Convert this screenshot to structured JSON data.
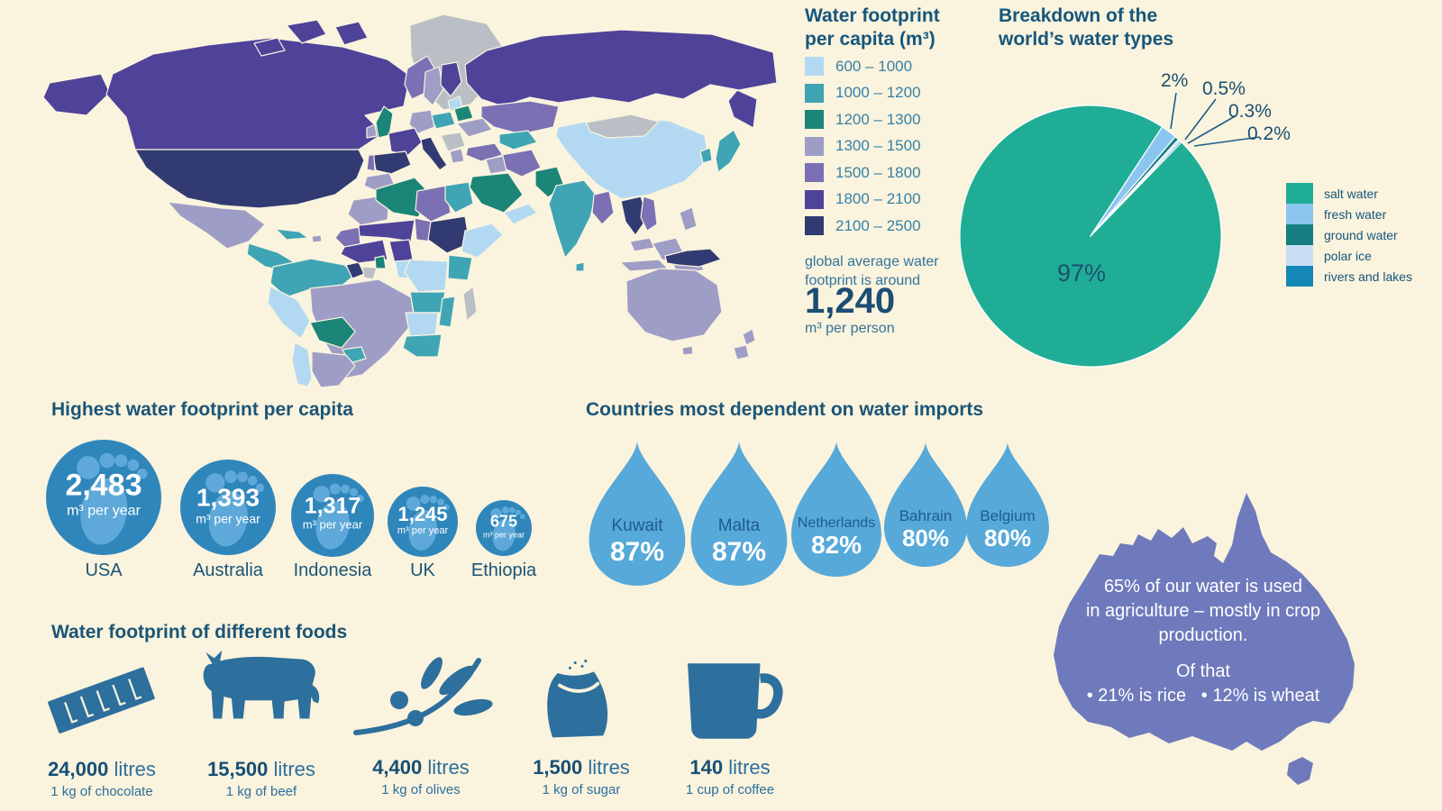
{
  "colors": {
    "background": "#faf3dd",
    "heading": "#15567d",
    "map": {
      "b600": "#b3d9f2",
      "b1000": "#3fa5b4",
      "b1200": "#1b8577",
      "b1300": "#9e9dc6",
      "b1500": "#7a70b3",
      "b1800": "#4e4399",
      "b2100": "#323a72",
      "nodata": "#b9bfc4"
    },
    "pie": {
      "salt": "#20ad96",
      "fresh": "#8cc6ef",
      "ground": "#157e80",
      "polar": "#cbdff4",
      "rivers": "#1588b8"
    },
    "foot_circle": "#2f86bb",
    "foot_icon": "#5ea9d9",
    "drop": "#57a9d9",
    "drop_label": "#1b5e8c",
    "australia": "#6f7abc",
    "food_icon": "#2d6f9d",
    "paper": "#fbf4de"
  },
  "map_legend": {
    "title_line1": "Water footprint",
    "title_line2": "per capita (m³)",
    "items": [
      {
        "label": "600 – 1000"
      },
      {
        "label": "1000 – 1200"
      },
      {
        "label": "1200 – 1300"
      },
      {
        "label": "1300 – 1500"
      },
      {
        "label": "1500 – 1800"
      },
      {
        "label": "1800 – 2100"
      },
      {
        "label": "2100 – 2500"
      }
    ],
    "note_line1": "global average water",
    "note_line2": "footprint is around",
    "average_value": "1,240",
    "average_unit": "m³ per person"
  },
  "pie": {
    "title_line1": "Breakdown of the",
    "title_line2": "world’s water types",
    "big_label": "97%",
    "callouts": [
      "2%",
      "0.5%",
      "0.3%",
      "0.2%"
    ],
    "legend": [
      "salt water",
      "fresh water",
      "ground water",
      "polar ice",
      "rivers and lakes"
    ]
  },
  "footprints": {
    "title": "Highest water footprint per capita",
    "items": [
      {
        "value": "2,483",
        "unit": "m³ per year",
        "country": "USA"
      },
      {
        "value": "1,393",
        "unit": "m³ per year",
        "country": "Australia"
      },
      {
        "value": "1,317",
        "unit": "m³ per year",
        "country": "Indonesia"
      },
      {
        "value": "1,245",
        "unit": "m³ per year",
        "country": "UK"
      },
      {
        "value": "675",
        "unit": "m³ per year",
        "country": "Ethiopia"
      }
    ]
  },
  "imports": {
    "title": "Countries most dependent on water imports",
    "items": [
      {
        "country": "Kuwait",
        "pct": "87%"
      },
      {
        "country": "Malta",
        "pct": "87%"
      },
      {
        "country": "Netherlands",
        "pct": "82%"
      },
      {
        "country": "Bahrain",
        "pct": "80%"
      },
      {
        "country": "Belgium",
        "pct": "80%"
      }
    ]
  },
  "australia": {
    "line1": "65% of our water is used",
    "line2": "in agriculture – mostly in crop",
    "line3": "production.",
    "of_that": "Of that",
    "rice": "• 21% is rice",
    "wheat": "• 12% is wheat"
  },
  "foods": {
    "title": "Water footprint of different foods",
    "items": [
      {
        "value": "24,000",
        "unit": " litres",
        "desc": "1 kg of chocolate",
        "icon": "chocolate-bar-icon"
      },
      {
        "value": "15,500",
        "unit": " litres",
        "desc": "1 kg of beef",
        "icon": "cow-icon"
      },
      {
        "value": "4,400",
        "unit": " litres",
        "desc": "1 kg of olives",
        "icon": "olive-branch-icon"
      },
      {
        "value": "1,500",
        "unit": " litres",
        "desc": "1 kg of sugar",
        "icon": "sugar-sack-icon"
      },
      {
        "value": "140",
        "unit": " litres",
        "desc": "1 cup of coffee",
        "icon": "coffee-mug-icon"
      }
    ]
  },
  "chart_data": [
    {
      "type": "heatmap",
      "subtype": "choropleth-world-map",
      "title": "Water footprint per capita (m³)",
      "buckets": [
        {
          "range": "600 – 1000",
          "color": "#b3d9f2"
        },
        {
          "range": "1000 – 1200",
          "color": "#3fa5b4"
        },
        {
          "range": "1200 – 1300",
          "color": "#1b8577"
        },
        {
          "range": "1300 – 1500",
          "color": "#9e9dc6"
        },
        {
          "range": "1500 – 1800",
          "color": "#7a70b3"
        },
        {
          "range": "1800 – 2100",
          "color": "#4e4399"
        },
        {
          "range": "2100 – 2500",
          "color": "#323a72"
        }
      ],
      "no_data_color": "#b9bfc4",
      "global_average": 1240,
      "global_average_unit": "m³ per person",
      "legend_position": "right"
    },
    {
      "type": "pie",
      "title": "Breakdown of the world’s water types",
      "labels": [
        "salt water",
        "fresh water",
        "ground water",
        "polar ice",
        "rivers and lakes"
      ],
      "values": [
        97,
        2,
        0.5,
        0.3,
        0.2
      ],
      "colors": [
        "#20ad96",
        "#8cc6ef",
        "#157e80",
        "#cbdff4",
        "#1588b8"
      ],
      "start_angle_deg": 33.3,
      "legend_position": "right"
    },
    {
      "type": "bar",
      "subtype": "pictogram-footprint-circles",
      "title": "Highest water footprint per capita",
      "categories": [
        "USA",
        "Australia",
        "Indonesia",
        "UK",
        "Ethiopia"
      ],
      "values": [
        2483,
        1393,
        1317,
        1245,
        675
      ],
      "unit": "m³ per year"
    },
    {
      "type": "bar",
      "subtype": "pictogram-water-drops",
      "title": "Countries most dependent on water imports",
      "categories": [
        "Kuwait",
        "Malta",
        "Netherlands",
        "Bahrain",
        "Belgium"
      ],
      "values": [
        87,
        87,
        82,
        80,
        80
      ],
      "unit": "%"
    },
    {
      "type": "bar",
      "subtype": "pictogram-foods",
      "title": "Water footprint of different foods",
      "categories": [
        "1 kg of chocolate",
        "1 kg of beef",
        "1 kg of olives",
        "1 kg of sugar",
        "1 cup of coffee"
      ],
      "values": [
        24000,
        15500,
        4400,
        1500,
        140
      ],
      "unit": "litres"
    },
    {
      "type": "table",
      "subtype": "fact-australia",
      "title": "Water use in agriculture (Australia)",
      "facts": [
        "65% of our water is used in agriculture – mostly in crop production.",
        "Of that 21% is rice",
        "Of that 12% is wheat"
      ]
    }
  ]
}
